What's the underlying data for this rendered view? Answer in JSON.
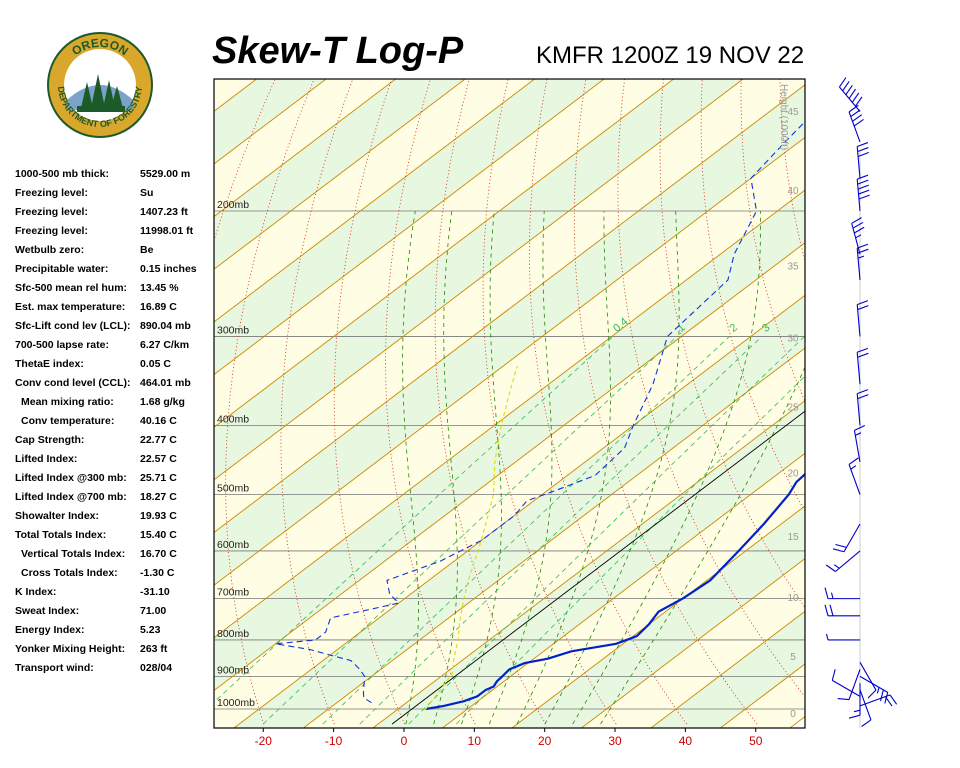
{
  "header": {
    "title": "Skew-T Log-P",
    "station": "KMFR 1200Z 19 NOV 22"
  },
  "logo": {
    "top_text": "OREGON",
    "bottom_text": "DEPARTMENT OF FORESTRY"
  },
  "indices": [
    {
      "label": "1000-500 mb thick:",
      "value": "5529.00 m"
    },
    {
      "label": "Freezing level:",
      "value": "Su"
    },
    {
      "label": "Freezing level:",
      "value": "1407.23 ft"
    },
    {
      "label": "Freezing level:",
      "value": "11998.01 ft"
    },
    {
      "label": "Wetbulb zero:",
      "value": "Be"
    },
    {
      "label": "Precipitable water:",
      "value": "0.15 inches"
    },
    {
      "label": "Sfc-500 mean rel hum:",
      "value": "13.45 %"
    },
    {
      "label": "Est. max temperature:",
      "value": "16.89 C"
    },
    {
      "label": "Sfc-Lift cond lev (LCL):",
      "value": "890.04 mb"
    },
    {
      "label": "700-500 lapse rate:",
      "value": "6.27 C/km"
    },
    {
      "label": "ThetaE index:",
      "value": "0.05 C"
    },
    {
      "label": "Conv cond level (CCL):",
      "value": "464.01 mb"
    },
    {
      "label": "Mean mixing ratio:",
      "value": "1.68 g/kg",
      "indent": true
    },
    {
      "label": "Conv temperature:",
      "value": "40.16 C",
      "indent": true
    },
    {
      "label": "Cap Strength:",
      "value": "22.77 C"
    },
    {
      "label": "Lifted Index:",
      "value": "22.57 C"
    },
    {
      "label": "Lifted Index @300 mb:",
      "value": "25.71 C"
    },
    {
      "label": "Lifted Index @700 mb:",
      "value": "18.27 C"
    },
    {
      "label": "Showalter Index:",
      "value": "19.93 C"
    },
    {
      "label": "Total Totals Index:",
      "value": "15.40 C"
    },
    {
      "label": "Vertical Totals Index:",
      "value": "16.70 C",
      "indent": true
    },
    {
      "label": "Cross Totals Index:",
      "value": "-1.30 C",
      "indent": true
    },
    {
      "label": "K Index:",
      "value": "-31.10"
    },
    {
      "label": "Sweat Index:",
      "value": "71.00"
    },
    {
      "label": "Energy Index:",
      "value": "5.23"
    },
    {
      "label": "Yonker Mixing Height:",
      "value": "263 ft"
    },
    {
      "label": "Transport wind:",
      "value": "028/04"
    }
  ],
  "chart_data": {
    "type": "line",
    "skew_t": true,
    "x_ticks": [
      "-20",
      "-10",
      "0",
      "10",
      "20",
      "30",
      "40",
      "50"
    ],
    "x_range": [
      -27,
      57
    ],
    "pressure_levels": [
      {
        "p": 200,
        "label": "200mb"
      },
      {
        "p": 300,
        "label": "300mb"
      },
      {
        "p": 400,
        "label": "400mb"
      },
      {
        "p": 500,
        "label": "500mb"
      },
      {
        "p": 600,
        "label": "600mb"
      },
      {
        "p": 700,
        "label": "700mb"
      },
      {
        "p": 800,
        "label": "800mb"
      },
      {
        "p": 900,
        "label": "900mb"
      },
      {
        "p": 1000,
        "label": "1000mb"
      }
    ],
    "height_axis_label": "Height (1000ft)",
    "height_ticks": [
      {
        "h": 0,
        "label": "0"
      },
      {
        "h": 5,
        "label": "5"
      },
      {
        "h": 10,
        "label": "10"
      },
      {
        "h": 15,
        "label": "15"
      },
      {
        "h": 20,
        "label": "20"
      },
      {
        "h": 25,
        "label": "25"
      },
      {
        "h": 30,
        "label": "30"
      },
      {
        "h": 35,
        "label": "35"
      },
      {
        "h": 40,
        "label": "40"
      },
      {
        "h": 45,
        "label": "45"
      },
      {
        "h": 50,
        "label": "50"
      }
    ],
    "mixing_ratio_labels": [
      "0.4",
      "1",
      "2",
      "3",
      "5",
      "8"
    ],
    "series": [
      {
        "role": "temperature",
        "color": "#0022cc",
        "points": [
          [
            1000,
            4
          ],
          [
            990,
            6
          ],
          [
            975,
            8
          ],
          [
            960,
            9
          ],
          [
            940,
            9
          ],
          [
            930,
            9.5
          ],
          [
            915,
            9
          ],
          [
            900,
            8.8
          ],
          [
            880,
            8.5
          ],
          [
            862,
            9.5
          ],
          [
            850,
            12
          ],
          [
            830,
            14
          ],
          [
            810,
            19
          ],
          [
            790,
            20.5
          ],
          [
            760,
            20
          ],
          [
            730,
            19
          ],
          [
            700,
            20
          ],
          [
            660,
            20.5
          ],
          [
            600,
            19
          ],
          [
            550,
            17.5
          ],
          [
            500,
            15.5
          ],
          [
            480,
            14.2
          ],
          [
            440,
            13.4
          ],
          [
            400,
            12
          ],
          [
            350,
            9
          ],
          [
            300,
            5
          ],
          [
            250,
            -1
          ],
          [
            220,
            -9
          ],
          [
            200,
            -16
          ],
          [
            170,
            -23
          ],
          [
            150,
            -27
          ],
          [
            140,
            -30
          ],
          [
            135,
            -32
          ],
          [
            125,
            -33
          ],
          [
            118,
            -35
          ]
        ]
      },
      {
        "role": "dewpoint",
        "color": "#1133dd",
        "dash": "6,4",
        "points": [
          [
            980,
            -5
          ],
          [
            965,
            -7
          ],
          [
            950,
            -8
          ],
          [
            900,
            -11
          ],
          [
            880,
            -13
          ],
          [
            855,
            -16
          ],
          [
            840,
            -20
          ],
          [
            825,
            -24
          ],
          [
            810,
            -30
          ],
          [
            800,
            -25
          ],
          [
            780,
            -25
          ],
          [
            745,
            -27
          ],
          [
            725,
            -23
          ],
          [
            710,
            -20
          ],
          [
            690,
            -23
          ],
          [
            660,
            -26
          ],
          [
            620,
            -22
          ],
          [
            580,
            -20
          ],
          [
            535,
            -20
          ],
          [
            510,
            -21
          ],
          [
            495,
            -19
          ],
          [
            470,
            -16
          ],
          [
            430,
            -17
          ],
          [
            400,
            -20
          ],
          [
            350,
            -25
          ],
          [
            300,
            -32
          ],
          [
            250,
            -34
          ],
          [
            230,
            -38
          ],
          [
            200,
            -43
          ],
          [
            180,
            -50
          ],
          [
            160,
            -52
          ],
          [
            140,
            -54
          ],
          [
            125,
            -55
          ],
          [
            118,
            -56
          ]
        ]
      },
      {
        "role": "parcel",
        "color": "#dddd00",
        "dash": "4,3",
        "points": [
          [
            1000,
            4
          ],
          [
            960,
            3
          ],
          [
            930,
            2.2
          ],
          [
            890,
            1
          ],
          [
            850,
            -1.5
          ],
          [
            800,
            -4.5
          ],
          [
            750,
            -8
          ],
          [
            700,
            -11.5
          ],
          [
            650,
            -15
          ],
          [
            600,
            -18.5
          ],
          [
            550,
            -22.5
          ],
          [
            500,
            -27
          ],
          [
            450,
            -33
          ],
          [
            400,
            -39
          ],
          [
            360,
            -44
          ],
          [
            330,
            -48
          ]
        ]
      }
    ],
    "wind_barbs": [
      {
        "p": 990,
        "dir": 70,
        "spd": 20
      },
      {
        "p": 960,
        "dir": 300,
        "spd": 10
      },
      {
        "p": 940,
        "dir": 160,
        "spd": 10
      },
      {
        "p": 920,
        "dir": 180,
        "spd": 15
      },
      {
        "p": 900,
        "dir": 120,
        "spd": 25
      },
      {
        "p": 880,
        "dir": 200,
        "spd": 10
      },
      {
        "p": 860,
        "dir": 150,
        "spd": 10
      },
      {
        "p": 800,
        "dir": 270,
        "spd": 5
      },
      {
        "p": 740,
        "dir": 270,
        "spd": 20
      },
      {
        "p": 700,
        "dir": 270,
        "spd": 15
      },
      {
        "p": 600,
        "dir": 230,
        "spd": 15
      },
      {
        "p": 550,
        "dir": 210,
        "spd": 20
      },
      {
        "p": 500,
        "dir": 340,
        "spd": 15
      },
      {
        "p": 450,
        "dir": 350,
        "spd": 15
      },
      {
        "p": 400,
        "dir": 355,
        "spd": 20
      },
      {
        "p": 350,
        "dir": 355,
        "spd": 20
      },
      {
        "p": 300,
        "dir": 355,
        "spd": 20
      },
      {
        "p": 250,
        "dir": 355,
        "spd": 25
      },
      {
        "p": 230,
        "dir": 345,
        "spd": 35
      },
      {
        "p": 200,
        "dir": 355,
        "spd": 50
      },
      {
        "p": 180,
        "dir": 355,
        "spd": 30
      },
      {
        "p": 160,
        "dir": 340,
        "spd": 40
      },
      {
        "p": 145,
        "dir": 320,
        "spd": 60
      },
      {
        "p": 130,
        "dir": 325,
        "spd": 70
      },
      {
        "p": 118,
        "dir": 310,
        "spd": 60
      }
    ]
  },
  "colors": {
    "temperature": "#0022cc",
    "dewpoint": "#1133dd",
    "parcel": "#dddd00",
    "isotherm": "#cc8800",
    "dry_adiabat": "#cc2200",
    "moist_adiabat": "#228800",
    "mixing_ratio": "#33bb55",
    "x_tick_label": "#cc0000",
    "height_tick_label": "#999999",
    "band_green": "#e8f7df",
    "band_yellow": "#fffde3"
  }
}
